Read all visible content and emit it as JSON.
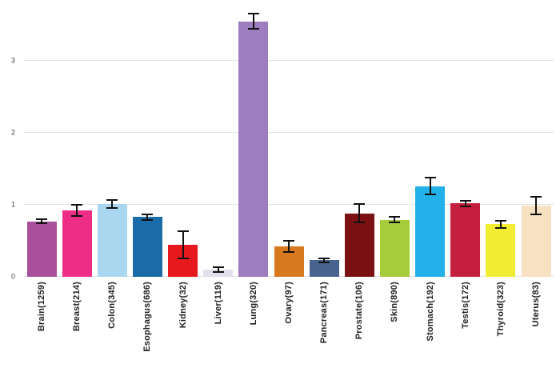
{
  "chart_data": {
    "type": "bar",
    "title": "",
    "xlabel": "",
    "ylabel": "",
    "categories": [
      "Brain(1259)",
      "Breast(214)",
      "Colon(345)",
      "Esophagus(686)",
      "Kidney(32)",
      "Liver(119)",
      "Lung(320)",
      "Ovary(97)",
      "Pancreas(171)",
      "Prostate(106)",
      "Skin(890)",
      "Stomach(192)",
      "Testis(172)",
      "Thyroid(323)",
      "Uterus(83)"
    ],
    "values": [
      0.77,
      0.92,
      1.01,
      0.83,
      0.45,
      0.1,
      3.55,
      0.42,
      0.23,
      0.88,
      0.79,
      1.26,
      1.02,
      0.73,
      0.99
    ],
    "errors": [
      0.04,
      0.09,
      0.07,
      0.05,
      0.2,
      0.04,
      0.12,
      0.09,
      0.04,
      0.14,
      0.05,
      0.13,
      0.05,
      0.06,
      0.13
    ],
    "colors": [
      "#a8509b",
      "#ee2d87",
      "#a9d7f0",
      "#1a6ca8",
      "#e8191d",
      "#e1e0ec",
      "#9d7cbf",
      "#d8781f",
      "#47648f",
      "#7c1114",
      "#a6cc3b",
      "#22b1ea",
      "#c51f3f",
      "#f2ec33",
      "#f8e1c3"
    ],
    "yticks": [
      0,
      1,
      2,
      3
    ],
    "ylim": [
      0,
      3.8
    ],
    "grid": true,
    "legend": "none",
    "grid_color": "#e4e4e4",
    "error_bar_color": "#111111",
    "tick_label_color": "#444444",
    "category_label_color": "#222222",
    "background_color": "#ffffff"
  }
}
